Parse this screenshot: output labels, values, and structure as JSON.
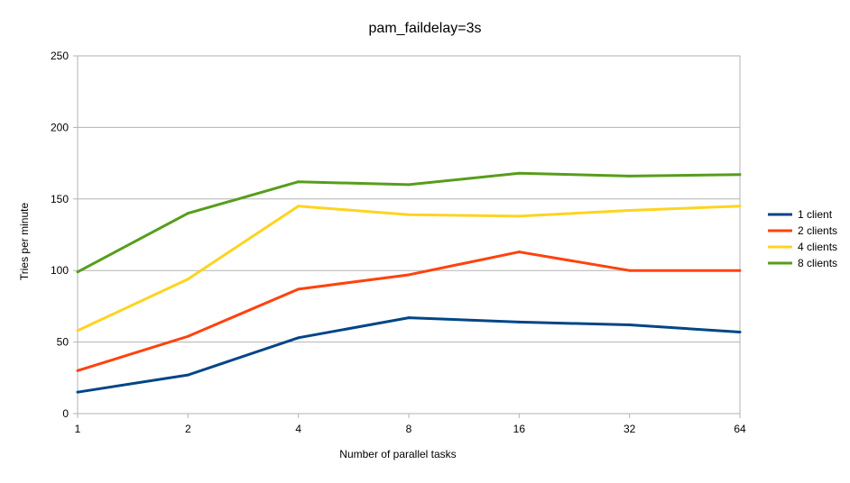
{
  "chart_data": {
    "type": "line",
    "title": "pam_faildelay=3s",
    "xlabel": "Number of parallel tasks",
    "ylabel": "Tries per minute",
    "categories": [
      "1",
      "2",
      "4",
      "8",
      "16",
      "32",
      "64"
    ],
    "ylim": [
      0,
      250
    ],
    "yticks": [
      0,
      50,
      100,
      150,
      200,
      250
    ],
    "grid": true,
    "legend_position": "right",
    "series": [
      {
        "name": "1 client",
        "color": "#004586",
        "values": [
          15,
          27,
          53,
          67,
          64,
          62,
          57
        ]
      },
      {
        "name": "2 clients",
        "color": "#ff420e",
        "values": [
          30,
          54,
          87,
          97,
          113,
          100,
          100
        ]
      },
      {
        "name": "4 clients",
        "color": "#ffd320",
        "values": [
          58,
          94,
          145,
          139,
          138,
          142,
          145
        ]
      },
      {
        "name": "8 clients",
        "color": "#579d1c",
        "values": [
          99,
          140,
          162,
          160,
          168,
          166,
          167
        ]
      }
    ]
  }
}
